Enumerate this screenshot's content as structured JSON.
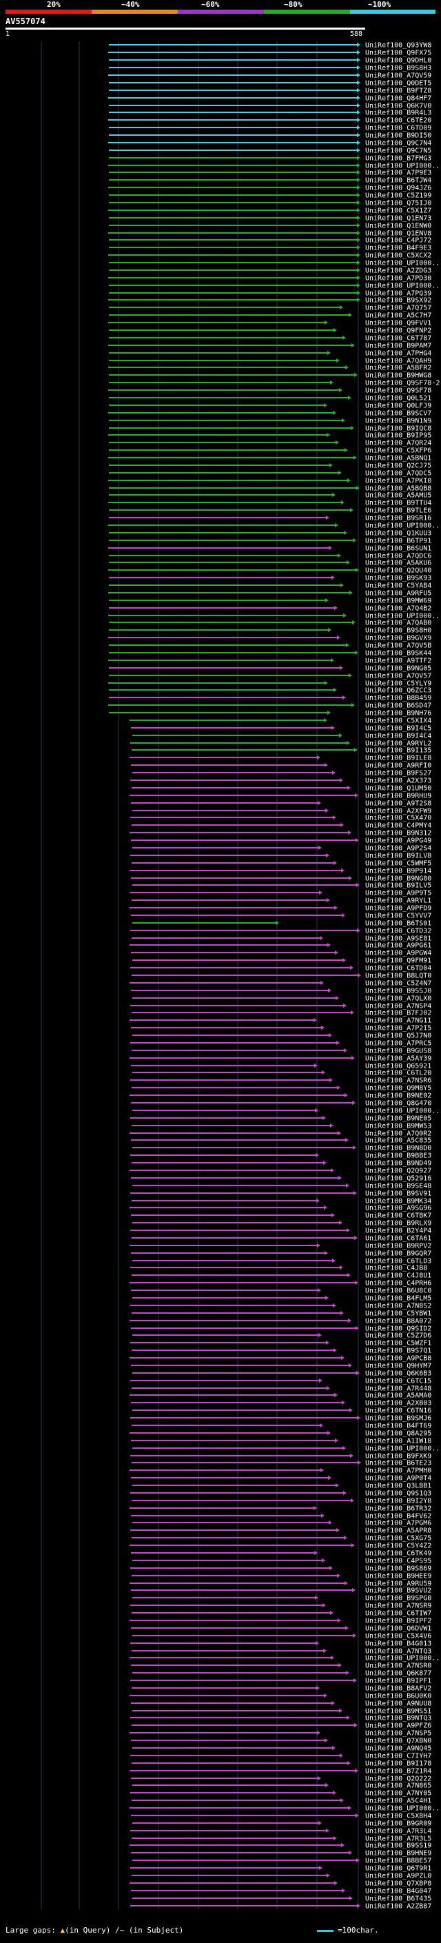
{
  "legend": {
    "labels": [
      "20%",
      "~40%",
      "~60%",
      "~80%",
      "~100%"
    ],
    "colors": [
      "#e8161c",
      "#e8881c",
      "#9c34c8",
      "#22aa22",
      "#33ccdd"
    ]
  },
  "query_id": "AV557074",
  "scale": {
    "start": "1",
    "end": "588"
  },
  "hit_colors": {
    "cyan": "#4ccfe0",
    "green": "#22b422",
    "magenta": "#cc44cc"
  },
  "hits": [
    "UniRef100_Q93YW8",
    "UniRef100_Q9FX75",
    "UniRef100_Q9DHL0",
    "UniRef100_B9S8H3",
    "UniRef100_A7QV59",
    "UniRef100_Q0DET5",
    "UniRef100_B9FTZ8",
    "UniRef100_Q84HF7",
    "UniRef100_Q6K7V0",
    "UniRef100_B9R4L3",
    "UniRef100_C6TE20",
    "UniRef100_C6TD09",
    "UniRef100_B9DI50",
    "UniRef100_Q9C7N4",
    "UniRef100_Q9C7N5",
    "UniRef100_B7FMG3",
    "UniRef100_UPI000...",
    "UniRef100_A7P9E3",
    "UniRef100_B6TJW4",
    "UniRef100_Q94JZ6",
    "UniRef100_C5Z199",
    "UniRef100_Q75IJ0",
    "UniRef100_C5X1Z7",
    "UniRef100_Q1EN73",
    "UniRef100_Q1ENW0",
    "UniRef100_Q1ENV8",
    "UniRef100_C4PJ72",
    "UniRef100_B4F9E3",
    "UniRef100_C5XCX2",
    "UniRef100_UPI000...",
    "UniRef100_A2ZDG3",
    "UniRef100_A7PD30",
    "UniRef100_UPI000...",
    "UniRef100_A7PQ39",
    "UniRef100_B9SX92",
    "UniRef100_A7Q757",
    "UniRef100_A5C7H7",
    "UniRef100_Q9FVV1",
    "UniRef100_Q9FNP2",
    "UniRef100_C6T787",
    "UniRef100_B9PAM7",
    "UniRef100_A7PHG4",
    "UniRef100_A7QAH9",
    "UniRef100_A5BFR2",
    "UniRef100_B9HWG8",
    "UniRef100_Q9SF78-2",
    "UniRef100_Q9SF78",
    "UniRef100_Q0L521",
    "UniRef100_Q0LFJ9",
    "UniRef100_B9SCV7",
    "UniRef100_B9N1N9",
    "UniRef100_B9IQC8",
    "UniRef100_B9IP95",
    "UniRef100_A7QR24",
    "UniRef100_C5XFP6",
    "UniRef100_A5BNQ1",
    "UniRef100_Q2CJ75",
    "UniRef100_A7QDC5",
    "UniRef100_A7PKI0",
    "UniRef100_A5BQB8",
    "UniRef100_A5AMU5",
    "UniRef100_B9TTU4",
    "UniRef100_B9TLE6",
    "UniRef100_B9SR16",
    "UniRef100_UPI000...",
    "UniRef100_Q1KUU3",
    "UniRef100_B6TP91",
    "UniRef100_B6SUN1",
    "UniRef100_A7QDC6",
    "UniRef100_A5AKU6",
    "UniRef100_Q2QU40",
    "UniRef100_B9SK93",
    "UniRef100_C5YAB4",
    "UniRef100_A9RFU5",
    "UniRef100_B9MW69",
    "UniRef100_A7Q4B2",
    "UniRef100_UPI000...",
    "UniRef100_A7QAB0",
    "UniRef100_B9S8H0",
    "UniRef100_B9GVX9",
    "UniRef100_A7QV5B",
    "UniRef100_B9SK44",
    "UniRef100_A9TTF2",
    "UniRef100_B9NG05",
    "UniRef100_A7QV57",
    "UniRef100_C5YLY9",
    "UniRef100_Q6ZCC3",
    "UniRef100_B8B459",
    "UniRef100_B6SD47",
    "UniRef100_B9NH76",
    "UniRef100_C5XIX4",
    "UniRef100_B9I4C5",
    "UniRef100_B9I4C4",
    "UniRef100_A9RYL2",
    "UniRef100_B9I135",
    "UniRef100_B9ILE8",
    "UniRef100_A9RFI0",
    "UniRef100_B9FS27",
    "UniRef100_A2X373",
    "UniRef100_Q1UM50",
    "UniRef100_B9RHU9",
    "UniRef100_A9T2S8",
    "UniRef100_A2XFW9",
    "UniRef100_C5X470",
    "UniRef100_C4PMY4",
    "UniRef100_B9N312",
    "UniRef100_A9PG49",
    "UniRef100_A9P2S4",
    "UniRef100_B9ILV8",
    "UniRef100_C5WMF5",
    "UniRef100_B9P914",
    "UniRef100_B9NG80",
    "UniRef100_B9ILV5",
    "UniRef100_A9P9T5",
    "UniRef100_A9RYL1",
    "UniRef100_A9PFD9",
    "UniRef100_C5YVV7",
    "UniRef100_B6TS01",
    "UniRef100_C6TD32",
    "UniRef100_A9SE81",
    "UniRef100_A9PG61",
    "UniRef100_A9PGW4",
    "UniRef100_Q9FM91",
    "UniRef100_C6TD04",
    "UniRef100_B8LQT0",
    "UniRef100_C5Z4N7",
    "UniRef100_B9SSJ0",
    "UniRef100_A7QLX0",
    "UniRef100_A7NSP4",
    "UniRef100_B7FJ02",
    "UniRef100_A7NG11",
    "UniRef100_A7P2I5",
    "UniRef100_Q5J7N0",
    "UniRef100_A7PRC5",
    "UniRef100_B9GUS8",
    "UniRef100_A5AY39",
    "UniRef100_Q65921",
    "UniRef100_C6TL20",
    "UniRef100_A7NSR6",
    "UniRef100_Q9M8Y5",
    "UniRef100_B9NE02",
    "UniRef100_Q8G470",
    "UniRef100_UPI000...",
    "UniRef100_B9NE05",
    "UniRef100_B9MW53",
    "UniRef100_A7Q0R2",
    "UniRef100_A5C835",
    "UniRef100_B9N8D0",
    "UniRef100_B9BBE3",
    "UniRef100_B9ND49",
    "UniRef100_Q2Q927",
    "UniRef100_Q52916",
    "UniRef100_B9SE48",
    "UniRef100_B9SV91",
    "UniRef100_B9MK34",
    "UniRef100_A9SG96",
    "UniRef100_C6TBK7",
    "UniRef100_B9RLX9",
    "UniRef100_B2Y4P4",
    "UniRef100_C6TA61",
    "UniRef100_B9RPV2",
    "UniRef100_B9GQR7",
    "UniRef100_C6TLD3",
    "UniRef100_C4JB8",
    "UniRef100_C4J8U1",
    "UniRef100_C4PRH6",
    "UniRef100_B6U8C0",
    "UniRef100_B4FLM5",
    "UniRef100_A7N8S2",
    "UniRef100_C5YBW1",
    "UniRef100_B8A072",
    "UniRef100_Q9SID2",
    "UniRef100_C5Z7D6",
    "UniRef100_C5WZF1",
    "UniRef100_B9S7Q1",
    "UniRef100_A9PCB8",
    "UniRef100_Q9HYM7",
    "UniRef100_Q6K6B3",
    "UniRef100_C6TC15",
    "UniRef100_A7R448",
    "UniRef100_A5AMA0",
    "UniRef100_A2XB03",
    "UniRef100_C6TN16",
    "UniRef100_B9SMJ6",
    "UniRef100_B4FT69",
    "UniRef100_Q8A295",
    "UniRef100_A1IW18",
    "UniRef100_UPI000...",
    "UniRef100_B9FXK9",
    "UniRef100_B6TE23",
    "UniRef100_A7PMH0",
    "UniRef100_A9P0T4",
    "UniRef100_Q3LBB1",
    "UniRef100_Q9S1Q3",
    "UniRef100_B9I2Y8",
    "UniRef100_B6TR32",
    "UniRef100_B4FV62",
    "UniRef100_A7PGM6",
    "UniRef100_A5APR8",
    "UniRef100_C5XG75",
    "UniRef100_C5Y4Z2",
    "UniRef100_C6TK49",
    "UniRef100_C4PS95",
    "UniRef100_B9S869",
    "UniRef100_B9HEE9",
    "UniRef100_A9RU59",
    "UniRef100_B9SVU2",
    "UniRef100_B9SPG0",
    "UniRef100_A7NSR9",
    "UniRef100_C6TIW7",
    "UniRef100_B9IPF2",
    "UniRef100_Q6DVW1",
    "UniRef100_C5X4V6",
    "UniRef100_B4G013",
    "UniRef100_A7NTQ3",
    "UniRef100_UPI000...",
    "UniRef100_A7NSR0",
    "UniRef100_Q6K877",
    "UniRef100_B9IPF1",
    "UniRef100_B8AFV2",
    "UniRef100_B6U0K0",
    "UniRef100_A9NUU8",
    "UniRef100_B9MS51",
    "UniRef100_B9NTQ3",
    "UniRef100_A9PFZ6",
    "UniRef100_A7NSP5",
    "UniRef100_Q7XBN0",
    "UniRef100_A9NQ45",
    "UniRef100_C7IYH7",
    "UniRef100_B9I178",
    "UniRef100_B7Z1R4",
    "UniRef100_Q2Q222",
    "UniRef100_A7N865",
    "UniRef100_A7NY05",
    "UniRef100_A5C4H1",
    "UniRef100_UPI000...",
    "UniRef100_C5X8H4",
    "UniRef100_B9GR09",
    "UniRef100_A7R3L4",
    "UniRef100_A7R3L5",
    "UniRef100_B9SS19",
    "UniRef100_B9HNE9",
    "UniRef100_B8BE57",
    "UniRef100_Q6T9R1",
    "UniRef100_A9PZL0",
    "UniRef100_Q7XBP8",
    "UniRef100_B4G047",
    "UniRef100_B6T435",
    "UniRef100_A2ZB87"
  ],
  "footer": {
    "large_gaps": "Large gaps:",
    "in_query": "(in Query)",
    "in_subject": "/~ (in Subject)",
    "scale_text": "=100char."
  }
}
